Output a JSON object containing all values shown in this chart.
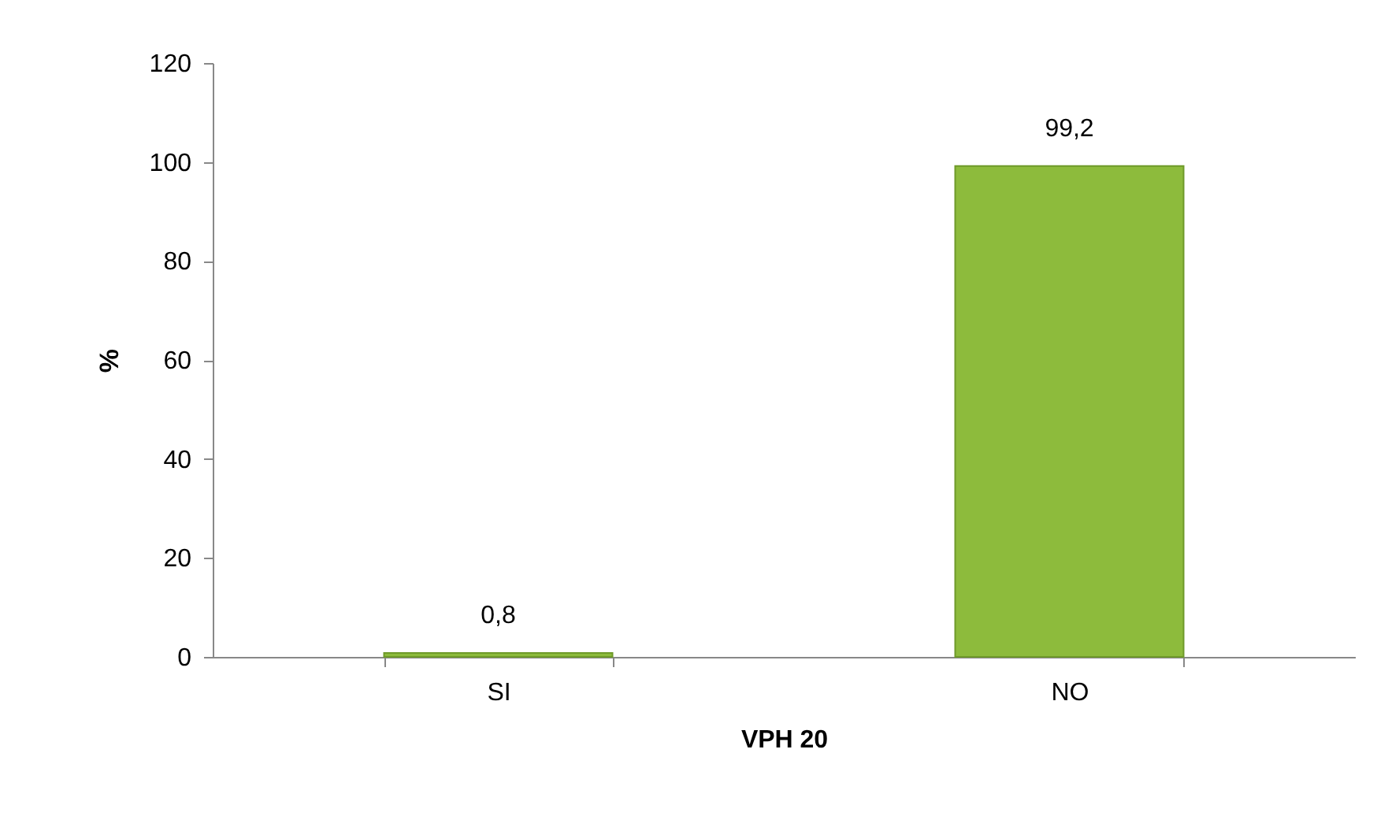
{
  "chart_data": {
    "type": "bar",
    "xlabel": "VPH 20",
    "ylabel": "%",
    "categories": [
      "SI",
      "NO"
    ],
    "values": [
      0.8,
      99.2
    ],
    "value_labels": [
      "0,8",
      "99,2"
    ],
    "color": "#8dbb3c",
    "ylim": [
      0,
      120
    ],
    "yticks": [
      0,
      20,
      40,
      60,
      80,
      100,
      120
    ],
    "grid": false
  }
}
